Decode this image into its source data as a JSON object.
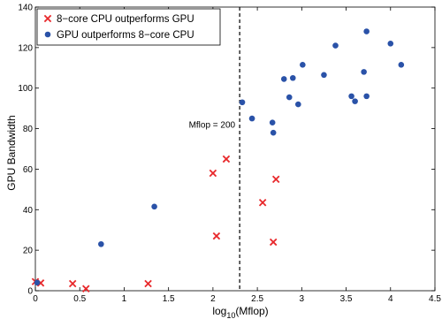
{
  "chart_data": {
    "type": "scatter",
    "xlabel_base": "log",
    "xlabel_sub": "10",
    "xlabel_rest": "(Mflop)",
    "ylabel": "GPU Bandwidth",
    "xlim": [
      0,
      4.5
    ],
    "ylim": [
      0,
      140
    ],
    "x_ticks": [
      "0",
      "0.5",
      "1",
      "1.5",
      "2",
      "2.5",
      "3",
      "3.5",
      "4",
      "4.5"
    ],
    "y_ticks": [
      "0",
      "20",
      "40",
      "60",
      "80",
      "100",
      "120",
      "140"
    ],
    "grid": false,
    "legend_position": "top-left",
    "threshold": {
      "x": 2.301,
      "label": "Mflop = 200"
    },
    "series": [
      {
        "name": "8−core CPU outperforms GPU",
        "marker": "x",
        "color": "#e8282b",
        "points": [
          [
            0.0,
            4.5
          ],
          [
            0.06,
            3.8
          ],
          [
            0.42,
            3.5
          ],
          [
            0.57,
            1.0
          ],
          [
            1.27,
            3.5
          ],
          [
            2.0,
            58
          ],
          [
            2.04,
            27
          ],
          [
            2.15,
            65
          ],
          [
            2.56,
            43.5
          ],
          [
            2.68,
            24
          ],
          [
            2.71,
            55
          ]
        ]
      },
      {
        "name": "GPU outperforms 8−core CPU",
        "marker": "dot",
        "color": "#2a52a8",
        "points": [
          [
            0.02,
            4.0
          ],
          [
            0.74,
            23
          ],
          [
            1.34,
            41.5
          ],
          [
            2.33,
            93
          ],
          [
            2.44,
            85
          ],
          [
            2.67,
            83
          ],
          [
            2.68,
            78
          ],
          [
            2.8,
            104.5
          ],
          [
            2.86,
            95.5
          ],
          [
            2.9,
            105
          ],
          [
            2.96,
            92
          ],
          [
            3.01,
            111.5
          ],
          [
            3.25,
            106.5
          ],
          [
            3.38,
            121
          ],
          [
            3.56,
            96
          ],
          [
            3.6,
            93.5
          ],
          [
            3.7,
            108
          ],
          [
            3.73,
            96
          ],
          [
            3.73,
            128
          ],
          [
            4.0,
            122
          ],
          [
            4.12,
            111.5
          ]
        ]
      }
    ]
  }
}
